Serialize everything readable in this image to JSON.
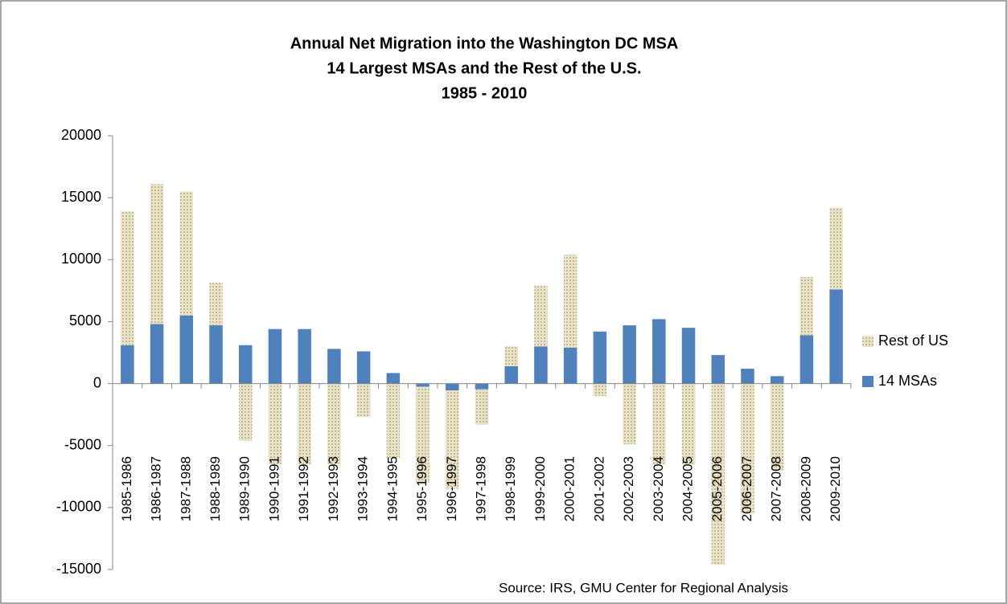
{
  "chart_data": {
    "type": "stacked_bar",
    "title": [
      "Annual Net Migration into the Washington DC MSA",
      "14 Largest MSAs and the Rest of the U.S.",
      "1985 - 2010"
    ],
    "source": "Source: IRS, GMU Center for Regional Analysis",
    "categories": [
      "1985-1986",
      "1986-1987",
      "1987-1988",
      "1988-1989",
      "1989-1990",
      "1990-1991",
      "1991-1992",
      "1992-1993",
      "1993-1994",
      "1994-1995",
      "1995-1996",
      "1996-1997",
      "1997-1998",
      "1998-1999",
      "1999-2000",
      "2000-2001",
      "2001-2002",
      "2002-2003",
      "2003-2004",
      "2004-2005",
      "2005-2006",
      "2006-2007",
      "2007-2008",
      "2008-2009",
      "2009-2010"
    ],
    "series": [
      {
        "name": "14 MSAs",
        "color": "#4f81bd",
        "values": [
          3100,
          4800,
          5500,
          4700,
          3100,
          4400,
          4400,
          2800,
          2600,
          850,
          -250,
          -550,
          -450,
          1400,
          3000,
          2900,
          4200,
          4700,
          5200,
          4500,
          2300,
          1200,
          600,
          3900,
          7600
        ]
      },
      {
        "name": "Rest of US",
        "color": "#d9d0a9",
        "values": [
          10800,
          11300,
          10000,
          3450,
          -4600,
          -6500,
          -6500,
          -6500,
          -2700,
          -6000,
          -7750,
          -7950,
          -2850,
          1600,
          4900,
          7500,
          -1000,
          -4900,
          -6500,
          -6500,
          -14600,
          -10500,
          -7000,
          4700,
          6600
        ]
      }
    ],
    "ylim": [
      -15000,
      20000
    ],
    "yticks": [
      -15000,
      -10000,
      -5000,
      0,
      5000,
      10000,
      15000,
      20000
    ],
    "legend": "right"
  }
}
